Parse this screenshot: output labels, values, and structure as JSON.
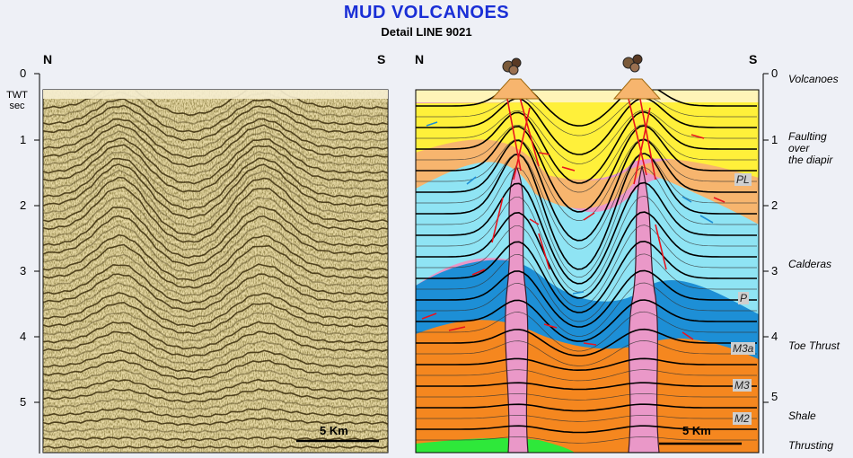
{
  "title": "MUD VOLCANOES",
  "subtitle": "Detail LINE 9021",
  "left_panel": {
    "north": "N",
    "south": "S",
    "axis_unit": "TWT\nsec",
    "ticks": [
      "0",
      "1",
      "2",
      "3",
      "4",
      "5"
    ],
    "scale_label": "5 Km"
  },
  "right_panel": {
    "north": "N",
    "south": "S",
    "ticks": [
      "0",
      "1",
      "2",
      "3",
      "4",
      "5"
    ],
    "scale_label": "5 Km",
    "unit_labels": [
      "PL",
      "P",
      "M3a",
      "M3",
      "M2"
    ],
    "colors": {
      "water": "#fff4b8",
      "pliocene_yellow": "#fff03a",
      "upper_orange": "#f7b56e",
      "cyan": "#8fe4f4",
      "blue": "#1d8fd6",
      "orange": "#f5871f",
      "shale_pink": "#ea98c8",
      "green": "#2ee83a"
    }
  },
  "annotations": [
    "Volcanoes",
    "Faulting\nover\nthe diapir",
    "Calderas",
    "Toe Thrust",
    "Shale",
    "Thrusting"
  ]
}
